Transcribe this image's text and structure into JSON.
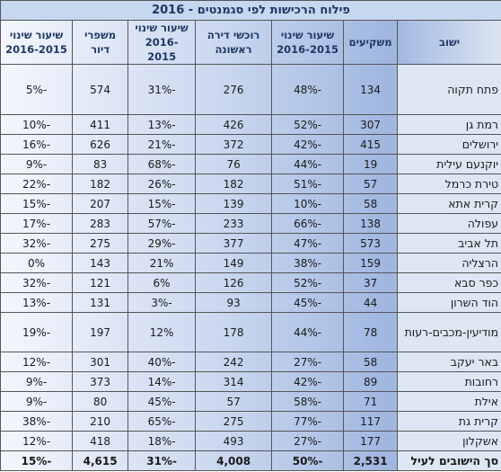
{
  "header": {
    "title": "פילוח הרכישות לפי סגמנטים - 2016"
  },
  "table": {
    "columns": [
      "ישוב",
      "משקיעים",
      "שיעור שינוי 2016-2015",
      "רוכשי דירה ראשונה",
      "שיעור שינוי 2016-2015",
      "משפרי דיור",
      "שיעור שינוי 2016-2015"
    ],
    "rows": [
      [
        "פתח תקוה",
        "134",
        "-48%",
        "276",
        "-31%",
        "574",
        "-5%"
      ],
      [
        "רמת גן",
        "307",
        "-52%",
        "426",
        "-13%",
        "411",
        "-10%"
      ],
      [
        "ירושלים",
        "415",
        "-42%",
        "372",
        "-21%",
        "626",
        "-16%"
      ],
      [
        "יוקנעם עילית",
        "19",
        "-44%",
        "76",
        "-68%",
        "83",
        "-9%"
      ],
      [
        "טירת כרמל",
        "57",
        "-51%",
        "182",
        "-26%",
        "182",
        "-22%"
      ],
      [
        "קרית אתא",
        "58",
        "-10%",
        "139",
        "-15%",
        "207",
        "-15%"
      ],
      [
        "עפולה",
        "138",
        "-66%",
        "233",
        "-57%",
        "283",
        "-17%"
      ],
      [
        "תל אביב",
        "573",
        "-47%",
        "377",
        "-29%",
        "275",
        "-32%"
      ],
      [
        "הרצליה",
        "159",
        "-38%",
        "149",
        "21%",
        "143",
        "0%"
      ],
      [
        "כפר סבא",
        "37",
        "-52%",
        "126",
        "6%",
        "121",
        "-32%"
      ],
      [
        "הוד השרון",
        "44",
        "-45%",
        "93",
        "-3%",
        "131",
        "-13%"
      ],
      [
        "מודיעין-מכבים-רעות",
        "78",
        "-44%",
        "178",
        "12%",
        "197",
        "-19%"
      ],
      [
        "באר יעקב",
        "58",
        "-27%",
        "242",
        "-40%",
        "301",
        "-12%"
      ],
      [
        "רחובות",
        "89",
        "-42%",
        "314",
        "-14%",
        "373",
        "-9%"
      ],
      [
        "אילת",
        "71",
        "-58%",
        "57",
        "-45%",
        "80",
        "-9%"
      ],
      [
        "קרית גת",
        "117",
        "-77%",
        "275",
        "-65%",
        "210",
        "-38%"
      ],
      [
        "אשקלון",
        "177",
        "-27%",
        "493",
        "-18%",
        "418",
        "-12%"
      ],
      [
        "סך הישובים לעיל",
        "2,531",
        "-50%",
        "4,008",
        "-31%",
        "4,615",
        "-15%"
      ]
    ]
  }
}
